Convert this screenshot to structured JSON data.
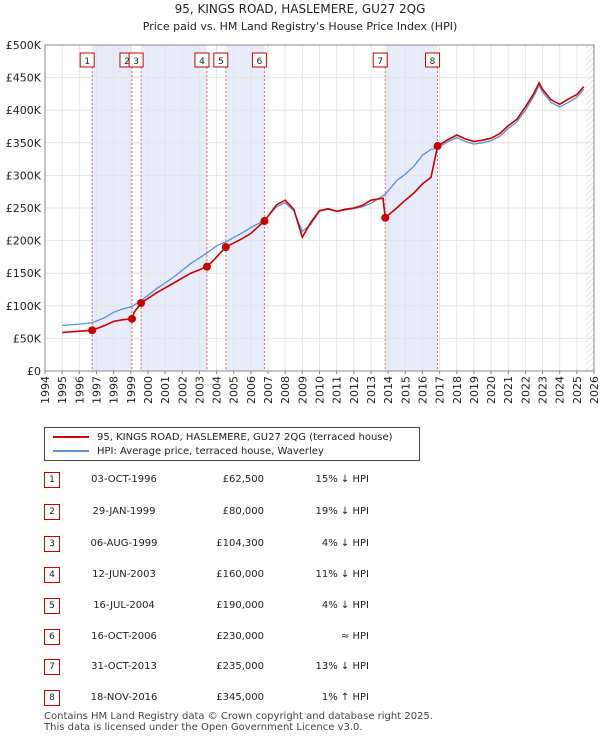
{
  "chart_data": {
    "type": "line",
    "title": "95, KINGS ROAD, HASLEMERE, GU27 2QG",
    "subtitle": "Price paid vs. HM Land Registry's House Price Index (HPI)",
    "xlim": [
      1994,
      2026
    ],
    "ylim": [
      0,
      500000
    ],
    "x_ticks": [
      "1994",
      "1995",
      "1996",
      "1997",
      "1998",
      "1999",
      "2000",
      "2001",
      "2002",
      "2003",
      "2004",
      "2005",
      "2006",
      "2007",
      "2008",
      "2009",
      "2010",
      "2011",
      "2012",
      "2013",
      "2014",
      "2015",
      "2016",
      "2017",
      "2018",
      "2019",
      "2020",
      "2021",
      "2022",
      "2023",
      "2024",
      "2025",
      "2026"
    ],
    "y_ticks": [
      {
        "value": 0,
        "label": "£0"
      },
      {
        "value": 50000,
        "label": "£50K"
      },
      {
        "value": 100000,
        "label": "£100K"
      },
      {
        "value": 150000,
        "label": "£150K"
      },
      {
        "value": 200000,
        "label": "£200K"
      },
      {
        "value": 250000,
        "label": "£250K"
      },
      {
        "value": 300000,
        "label": "£300K"
      },
      {
        "value": 350000,
        "label": "£350K"
      },
      {
        "value": 400000,
        "label": "£400K"
      },
      {
        "value": 450000,
        "label": "£450K"
      },
      {
        "value": 500000,
        "label": "£500K"
      }
    ],
    "shaded_ranges": [
      [
        1996.75,
        1999.07
      ],
      [
        1999.6,
        2003.44
      ],
      [
        2004.54,
        2006.79
      ],
      [
        2013.83,
        2016.88
      ]
    ],
    "series": [
      {
        "name": "HPI: Average price, terraced house, Waverley",
        "color": "#5b8ed6",
        "points": [
          [
            1995.0,
            70000
          ],
          [
            1996.0,
            72000
          ],
          [
            1996.75,
            74000
          ],
          [
            1997.5,
            82000
          ],
          [
            1998.0,
            90000
          ],
          [
            1998.5,
            95000
          ],
          [
            1999.07,
            99000
          ],
          [
            1999.6,
            108000
          ],
          [
            2000.5,
            126000
          ],
          [
            2001.5,
            144000
          ],
          [
            2002.5,
            165000
          ],
          [
            2003.44,
            181000
          ],
          [
            2004.0,
            192000
          ],
          [
            2004.54,
            198000
          ],
          [
            2005.5,
            212000
          ],
          [
            2006.0,
            220000
          ],
          [
            2006.79,
            231000
          ],
          [
            2007.5,
            252000
          ],
          [
            2008.0,
            258000
          ],
          [
            2008.5,
            246000
          ],
          [
            2009.0,
            214000
          ],
          [
            2009.5,
            225000
          ],
          [
            2010.0,
            245000
          ],
          [
            2010.5,
            248000
          ],
          [
            2011.0,
            245000
          ],
          [
            2011.5,
            247000
          ],
          [
            2012.0,
            249000
          ],
          [
            2012.5,
            252000
          ],
          [
            2013.0,
            257000
          ],
          [
            2013.83,
            271000
          ],
          [
            2014.5,
            292000
          ],
          [
            2015.0,
            302000
          ],
          [
            2015.5,
            314000
          ],
          [
            2016.0,
            331000
          ],
          [
            2016.5,
            340000
          ],
          [
            2016.88,
            342000
          ],
          [
            2017.5,
            352000
          ],
          [
            2018.0,
            358000
          ],
          [
            2018.5,
            352000
          ],
          [
            2019.0,
            348000
          ],
          [
            2019.5,
            350000
          ],
          [
            2020.0,
            353000
          ],
          [
            2020.5,
            360000
          ],
          [
            2021.0,
            372000
          ],
          [
            2021.5,
            382000
          ],
          [
            2022.0,
            400000
          ],
          [
            2022.5,
            422000
          ],
          [
            2022.8,
            438000
          ],
          [
            2023.0,
            428000
          ],
          [
            2023.5,
            412000
          ],
          [
            2024.0,
            405000
          ],
          [
            2024.5,
            412000
          ],
          [
            2025.0,
            420000
          ],
          [
            2025.4,
            432000
          ]
        ]
      },
      {
        "name": "95, KINGS ROAD, HASLEMERE, GU27 2QG (terraced house)",
        "color": "#cc0000",
        "points": [
          [
            1995.0,
            59000
          ],
          [
            1996.0,
            61000
          ],
          [
            1996.75,
            62500
          ],
          [
            1997.5,
            70000
          ],
          [
            1998.0,
            76000
          ],
          [
            1998.5,
            78500
          ],
          [
            1999.07,
            80000
          ],
          [
            1999.2,
            90000
          ],
          [
            1999.6,
            104300
          ],
          [
            2000.5,
            120000
          ],
          [
            2001.5,
            135000
          ],
          [
            2002.5,
            150000
          ],
          [
            2003.44,
            160000
          ],
          [
            2003.9,
            172000
          ],
          [
            2004.54,
            190000
          ],
          [
            2005.5,
            203000
          ],
          [
            2006.0,
            211000
          ],
          [
            2006.79,
            230000
          ],
          [
            2007.5,
            255000
          ],
          [
            2008.0,
            262000
          ],
          [
            2008.5,
            248000
          ],
          [
            2009.0,
            205000
          ],
          [
            2009.5,
            228000
          ],
          [
            2010.0,
            246000
          ],
          [
            2010.5,
            249000
          ],
          [
            2011.0,
            245000
          ],
          [
            2011.5,
            248000
          ],
          [
            2012.0,
            250000
          ],
          [
            2012.5,
            254000
          ],
          [
            2013.0,
            262000
          ],
          [
            2013.7,
            265000
          ],
          [
            2013.83,
            235000
          ],
          [
            2014.5,
            250000
          ],
          [
            2015.0,
            262000
          ],
          [
            2015.5,
            273000
          ],
          [
            2016.0,
            287000
          ],
          [
            2016.5,
            297000
          ],
          [
            2016.88,
            345000
          ],
          [
            2017.5,
            355000
          ],
          [
            2018.0,
            362000
          ],
          [
            2018.5,
            356000
          ],
          [
            2019.0,
            352000
          ],
          [
            2019.5,
            354000
          ],
          [
            2020.0,
            357000
          ],
          [
            2020.5,
            364000
          ],
          [
            2021.0,
            376000
          ],
          [
            2021.5,
            386000
          ],
          [
            2022.0,
            405000
          ],
          [
            2022.5,
            426000
          ],
          [
            2022.8,
            442000
          ],
          [
            2023.0,
            432000
          ],
          [
            2023.5,
            416000
          ],
          [
            2024.0,
            409000
          ],
          [
            2024.5,
            417000
          ],
          [
            2025.0,
            424000
          ],
          [
            2025.4,
            436000
          ]
        ]
      }
    ],
    "sales": [
      {
        "label": "1",
        "date": "03-OCT-1996",
        "x": 1996.75,
        "price": 62500,
        "price_text": "£62,500",
        "hpi": "15% ↓ HPI"
      },
      {
        "label": "2",
        "date": "29-JAN-1999",
        "x": 1999.07,
        "price": 80000,
        "price_text": "£80,000",
        "hpi": "19% ↓ HPI"
      },
      {
        "label": "3",
        "date": "06-AUG-1999",
        "x": 1999.6,
        "price": 104300,
        "price_text": "£104,300",
        "hpi": "4% ↓ HPI"
      },
      {
        "label": "4",
        "date": "12-JUN-2003",
        "x": 2003.44,
        "price": 160000,
        "price_text": "£160,000",
        "hpi": "11% ↓ HPI"
      },
      {
        "label": "5",
        "date": "16-JUL-2004",
        "x": 2004.54,
        "price": 190000,
        "price_text": "£190,000",
        "hpi": "4% ↓ HPI"
      },
      {
        "label": "6",
        "date": "16-OCT-2006",
        "x": 2006.79,
        "price": 230000,
        "price_text": "£230,000",
        "hpi": "≈ HPI"
      },
      {
        "label": "7",
        "date": "31-OCT-2013",
        "x": 2013.83,
        "price": 235000,
        "price_text": "£235,000",
        "hpi": "13% ↓ HPI"
      },
      {
        "label": "8",
        "date": "18-NOV-2016",
        "x": 2016.88,
        "price": 345000,
        "price_text": "£345,000",
        "hpi": "1% ↑ HPI"
      }
    ]
  },
  "legend": {
    "property_label": "95, KINGS ROAD, HASLEMERE, GU27 2QG (terraced house)",
    "hpi_label": "HPI: Average price, terraced house, Waverley"
  },
  "footer": {
    "line1": "Contains HM Land Registry data © Crown copyright and database right 2025.",
    "line2": "This data is licensed under the Open Government Licence v3.0."
  }
}
